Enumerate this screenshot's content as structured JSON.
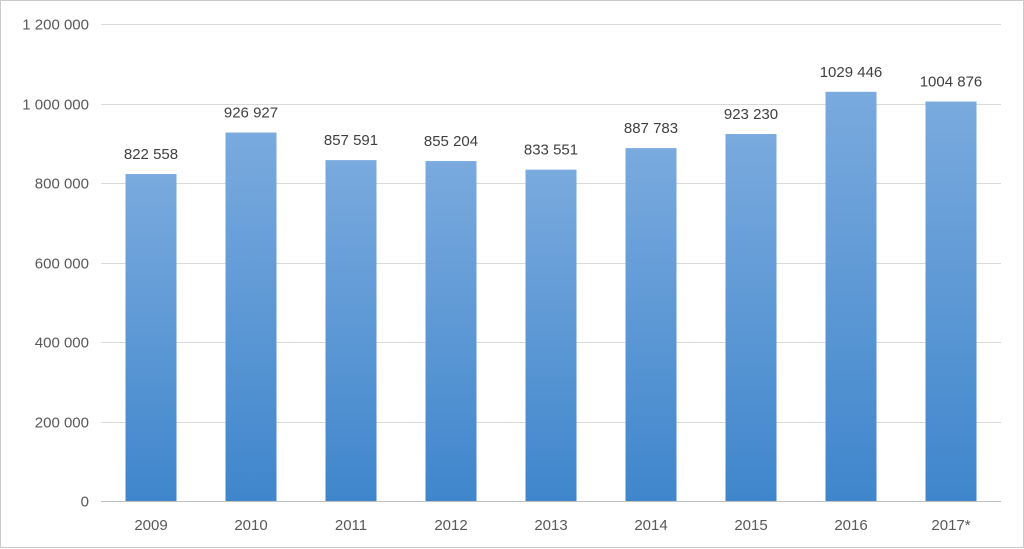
{
  "chart_data": {
    "type": "bar",
    "title": "",
    "xlabel": "",
    "ylabel": "",
    "categories": [
      "2009",
      "2010",
      "2011",
      "2012",
      "2013",
      "2014",
      "2015",
      "2016",
      "2017*"
    ],
    "values": [
      822558,
      926927,
      857591,
      855204,
      833551,
      887783,
      923230,
      1029446,
      1004876
    ],
    "data_labels": [
      "822 558",
      "926 927",
      "857 591",
      "855 204",
      "833 551",
      "887 783",
      "923 230",
      "1029 446",
      "1004 876"
    ],
    "ylim": [
      0,
      1200000
    ],
    "yticks": [
      0,
      200000,
      400000,
      600000,
      800000,
      1000000,
      1200000
    ],
    "ytick_labels": [
      "0",
      "200 000",
      "400 000",
      "600 000",
      "800 000",
      "1 000 000",
      "1 200 000"
    ],
    "grid": true,
    "legend": "none",
    "colors": {
      "bar_top": "#7aaade",
      "bar_bottom": "#3f86cc",
      "grid": "#d9d9d9",
      "axis": "#bfbfbf"
    }
  }
}
